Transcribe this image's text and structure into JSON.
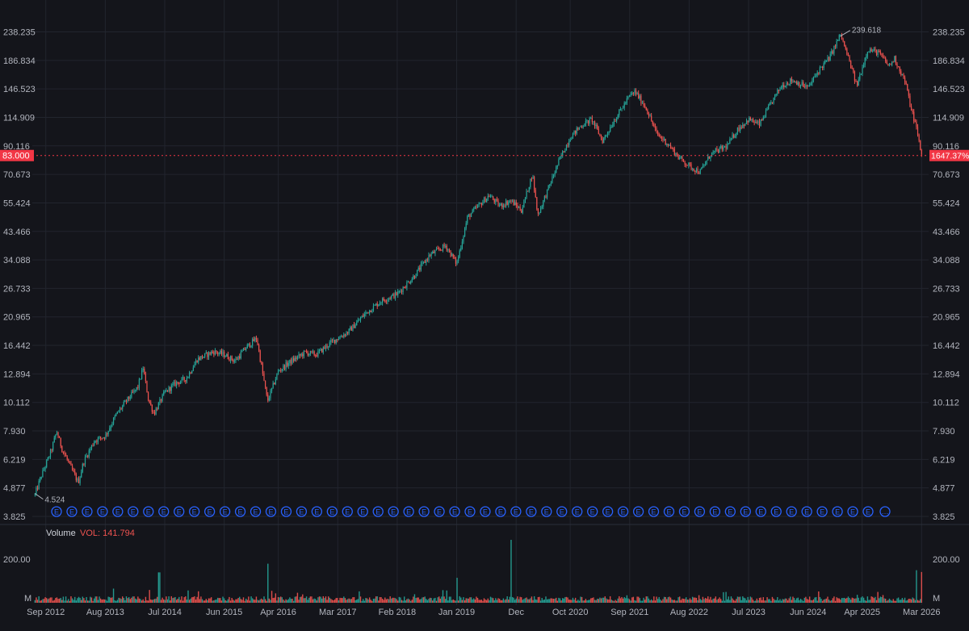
{
  "colors": {
    "background": "#14151b",
    "grid": "#22252e",
    "text": "#b2b5be",
    "up": "#26a69a",
    "down": "#ef5350",
    "price_line": "#f23645",
    "earnings_marker": "#2962ff"
  },
  "price_tag": {
    "left": "83.000",
    "right": "1647.37%"
  },
  "volume_header": {
    "title": "Volume",
    "value": "VOL: 141.794"
  },
  "earnings_marker_glyph": "E",
  "earnings_more_glyph": "…",
  "earnings_count": 54,
  "chart_data": {
    "type": "candlestick",
    "y_scale": "log",
    "y_range": [
      3.825,
      238.235
    ],
    "y_ticks": [
      "238.235",
      "186.834",
      "146.523",
      "114.909",
      "90.116",
      "70.673",
      "55.424",
      "43.466",
      "34.088",
      "26.733",
      "20.965",
      "16.442",
      "12.894",
      "10.112",
      "7.930",
      "6.219",
      "4.877",
      "3.825"
    ],
    "x_ticks": [
      "Sep 2012",
      "Aug 2013",
      "Jul 2014",
      "Jun 2015",
      "Apr 2016",
      "Mar 2017",
      "Feb 2018",
      "Jan 2019",
      "Dec",
      "Oct 2020",
      "Sep 2021",
      "Aug 2022",
      "Jul 2023",
      "Jun 2024",
      "Apr 2025",
      "Mar 2026"
    ],
    "high_label": "239.618",
    "low_label": "4.524",
    "last_price": 83.0,
    "price_path": [
      [
        "Jul 2012",
        4.6
      ],
      [
        "Aug 2012",
        5.3
      ],
      [
        "Oct 2012",
        6.7
      ],
      [
        "Nov 2012",
        7.9
      ],
      [
        "Dec 2012",
        6.8
      ],
      [
        "Feb 2013",
        5.6
      ],
      [
        "Mar 2013",
        5.1
      ],
      [
        "Apr 2013",
        6.1
      ],
      [
        "Jun 2013",
        7.3
      ],
      [
        "Aug 2013",
        7.6
      ],
      [
        "Oct 2013",
        9.1
      ],
      [
        "Dec 2013",
        10.3
      ],
      [
        "Feb 2014",
        11.5
      ],
      [
        "Mar 2014",
        13.6
      ],
      [
        "Apr 2014",
        10.3
      ],
      [
        "May 2014",
        9.2
      ],
      [
        "Jul 2014",
        11.0
      ],
      [
        "Sep 2014",
        11.9
      ],
      [
        "Nov 2014",
        12.4
      ],
      [
        "Jan 2015",
        14.6
      ],
      [
        "Apr 2015",
        15.6
      ],
      [
        "Jun 2015",
        15.2
      ],
      [
        "Aug 2015",
        14.4
      ],
      [
        "Oct 2015",
        16.1
      ],
      [
        "Dec 2015",
        17.5
      ],
      [
        "Feb 2016",
        10.2
      ],
      [
        "Apr 2016",
        13.2
      ],
      [
        "Jun 2016",
        14.2
      ],
      [
        "Sep 2016",
        15.5
      ],
      [
        "Nov 2016",
        15.2
      ],
      [
        "Feb 2017",
        17.0
      ],
      [
        "May 2017",
        18.5
      ],
      [
        "Aug 2017",
        21.5
      ],
      [
        "Nov 2017",
        24.0
      ],
      [
        "Feb 2018",
        25.5
      ],
      [
        "May 2018",
        29.5
      ],
      [
        "Aug 2018",
        35.5
      ],
      [
        "Nov 2018",
        38.5
      ],
      [
        "Jan 2019",
        33.0
      ],
      [
        "Mar 2019",
        49.0
      ],
      [
        "May 2019",
        54.0
      ],
      [
        "Jul 2019",
        59.0
      ],
      [
        "Sep 2019",
        54.0
      ],
      [
        "Nov 2019",
        56.5
      ],
      [
        "Jan 2020",
        52.0
      ],
      [
        "Mar 2020",
        71.0
      ],
      [
        "Apr 2020",
        50.0
      ],
      [
        "Jun 2020",
        63.0
      ],
      [
        "Aug 2020",
        80.0
      ],
      [
        "Oct 2020",
        97.0
      ],
      [
        "Dec 2020",
        107.0
      ],
      [
        "Feb 2021",
        113.0
      ],
      [
        "Apr 2021",
        94.0
      ],
      [
        "Jun 2021",
        111.0
      ],
      [
        "Sep 2021",
        138.0
      ],
      [
        "Oct 2021",
        143.0
      ],
      [
        "Dec 2021",
        125.0
      ],
      [
        "Feb 2022",
        100.0
      ],
      [
        "Apr 2022",
        92.0
      ],
      [
        "Jun 2022",
        82.0
      ],
      [
        "Aug 2022",
        76.0
      ],
      [
        "Oct 2022",
        72.0
      ],
      [
        "Dec 2022",
        84.0
      ],
      [
        "Mar 2023",
        90.0
      ],
      [
        "May 2023",
        104.0
      ],
      [
        "Jul 2023",
        113.0
      ],
      [
        "Sep 2023",
        108.0
      ],
      [
        "Nov 2023",
        128.0
      ],
      [
        "Jan 2024",
        150.0
      ],
      [
        "Mar 2024",
        158.0
      ],
      [
        "Jun 2024",
        148.0
      ],
      [
        "Aug 2024",
        172.0
      ],
      [
        "Oct 2024",
        192.0
      ],
      [
        "Dec 2024",
        233.0
      ],
      [
        "Feb 2025",
        176.0
      ],
      [
        "Mar 2025",
        150.0
      ],
      [
        "May 2025",
        205.0
      ],
      [
        "Jul 2025",
        200.0
      ],
      [
        "Sep 2025",
        178.0
      ],
      [
        "Oct 2025",
        190.0
      ],
      [
        "Dec 2025",
        155.0
      ],
      [
        "Jan 2026",
        125.0
      ],
      [
        "Feb 2026",
        106.0
      ],
      [
        "Mar 2026",
        83.0
      ]
    ],
    "volume": {
      "label": "Volume",
      "y_ticks": [
        "200.00",
        "M"
      ],
      "notable_spikes": [
        [
          "Feb 2016",
          180
        ],
        [
          "Jun 2014",
          140
        ],
        [
          "Nov 2019",
          290
        ],
        [
          "Jan 2019",
          115
        ],
        [
          "Feb 2026",
          150
        ],
        [
          "Mar 2026",
          141.794
        ]
      ]
    }
  }
}
